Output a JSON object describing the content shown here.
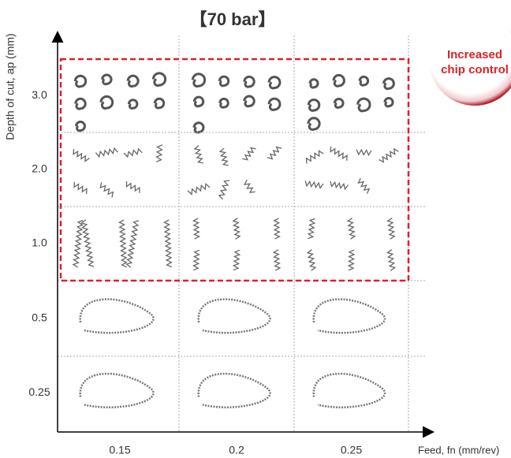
{
  "header": {
    "title": "【70 bar】"
  },
  "axes": {
    "y_label": "Depth of cut, ap (mm)",
    "x_label": "Feed, fn (mm/rev)",
    "y_categories": [
      "3.0",
      "2.0",
      "1.0",
      "0.5",
      "0.25"
    ],
    "x_categories": [
      "0.15",
      "0.2",
      "0.25"
    ]
  },
  "badge": {
    "lines": [
      "Increased",
      "chip control"
    ]
  }
}
